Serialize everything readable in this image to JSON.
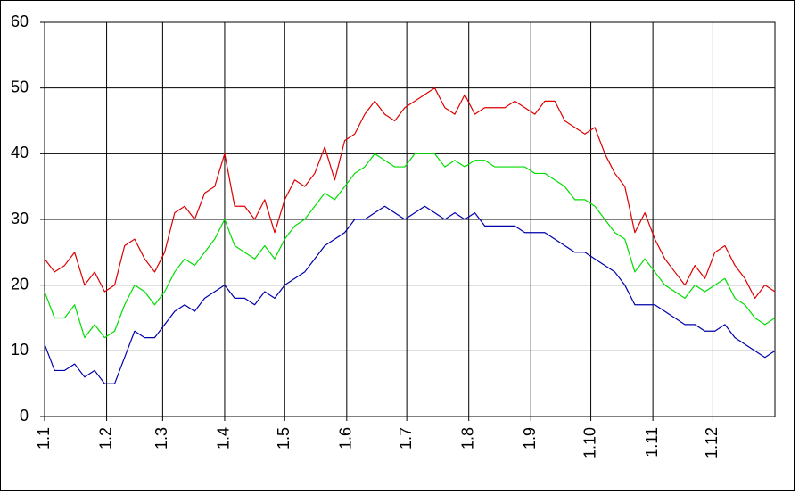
{
  "chart_data": {
    "type": "line",
    "x": [
      0,
      5,
      10,
      15,
      20,
      25,
      30,
      35,
      40,
      45,
      50,
      55,
      60,
      65,
      70,
      75,
      80,
      85,
      90,
      95,
      100,
      105,
      110,
      115,
      120,
      125,
      130,
      135,
      140,
      145,
      150,
      155,
      160,
      165,
      170,
      175,
      180,
      185,
      190,
      195,
      200,
      205,
      210,
      215,
      220,
      225,
      230,
      235,
      240,
      245,
      250,
      255,
      260,
      265,
      270,
      275,
      280,
      285,
      290,
      295,
      300,
      305,
      310,
      315,
      320,
      325,
      330,
      335,
      340,
      345,
      350,
      355,
      360,
      365
    ],
    "series": [
      {
        "color": "#dd0000",
        "values": [
          24,
          22,
          23,
          25,
          20,
          22,
          19,
          20,
          26,
          27,
          24,
          22,
          25,
          31,
          32,
          30,
          34,
          35,
          40,
          32,
          32,
          30,
          33,
          28,
          33,
          36,
          35,
          37,
          41,
          36,
          42,
          43,
          46,
          48,
          46,
          45,
          47,
          48,
          49,
          50,
          47,
          46,
          49,
          46,
          47,
          47,
          47,
          48,
          47,
          46,
          48,
          48,
          45,
          44,
          43,
          44,
          40,
          37,
          35,
          28,
          31,
          27,
          24,
          22,
          20,
          23,
          21,
          25,
          26,
          23,
          21,
          18,
          20,
          19
        ]
      },
      {
        "color": "#00dd00",
        "values": [
          19,
          15,
          15,
          17,
          12,
          14,
          12,
          13,
          17,
          20,
          19,
          17,
          19,
          22,
          24,
          23,
          25,
          27,
          30,
          26,
          25,
          24,
          26,
          24,
          27,
          29,
          30,
          32,
          34,
          33,
          35,
          37,
          38,
          40,
          39,
          38,
          38,
          40,
          40,
          40,
          38,
          39,
          38,
          39,
          39,
          38,
          38,
          38,
          38,
          37,
          37,
          36,
          35,
          33,
          33,
          32,
          30,
          28,
          27,
          22,
          24,
          22,
          20,
          19,
          18,
          20,
          19,
          20,
          21,
          18,
          17,
          15,
          14,
          15
        ]
      },
      {
        "color": "#0000aa",
        "values": [
          11,
          7,
          7,
          8,
          6,
          7,
          5,
          5,
          9,
          13,
          12,
          12,
          14,
          16,
          17,
          16,
          18,
          19,
          20,
          18,
          18,
          17,
          19,
          18,
          20,
          21,
          22,
          24,
          26,
          27,
          28,
          30,
          30,
          31,
          32,
          31,
          30,
          31,
          32,
          31,
          30,
          31,
          30,
          31,
          29,
          29,
          29,
          29,
          28,
          28,
          28,
          27,
          26,
          25,
          25,
          24,
          23,
          22,
          20,
          17,
          17,
          17,
          16,
          15,
          14,
          14,
          13,
          13,
          14,
          12,
          11,
          10,
          9,
          10
        ]
      }
    ],
    "xlim": [
      0,
      365
    ],
    "xticks": [
      {
        "value": 0,
        "label": "1.1"
      },
      {
        "value": 31,
        "label": "1.2"
      },
      {
        "value": 59,
        "label": "1.3"
      },
      {
        "value": 90,
        "label": "1.4"
      },
      {
        "value": 120,
        "label": "1.5"
      },
      {
        "value": 151,
        "label": "1.6"
      },
      {
        "value": 181,
        "label": "1.7"
      },
      {
        "value": 212,
        "label": "1.8"
      },
      {
        "value": 243,
        "label": "1.9"
      },
      {
        "value": 273,
        "label": "1.10"
      },
      {
        "value": 304,
        "label": "1.11"
      },
      {
        "value": 334,
        "label": "1.12"
      }
    ],
    "ylim": [
      0,
      60
    ],
    "yticks": [
      0,
      10,
      20,
      30,
      40,
      50,
      60
    ],
    "grid": true
  }
}
